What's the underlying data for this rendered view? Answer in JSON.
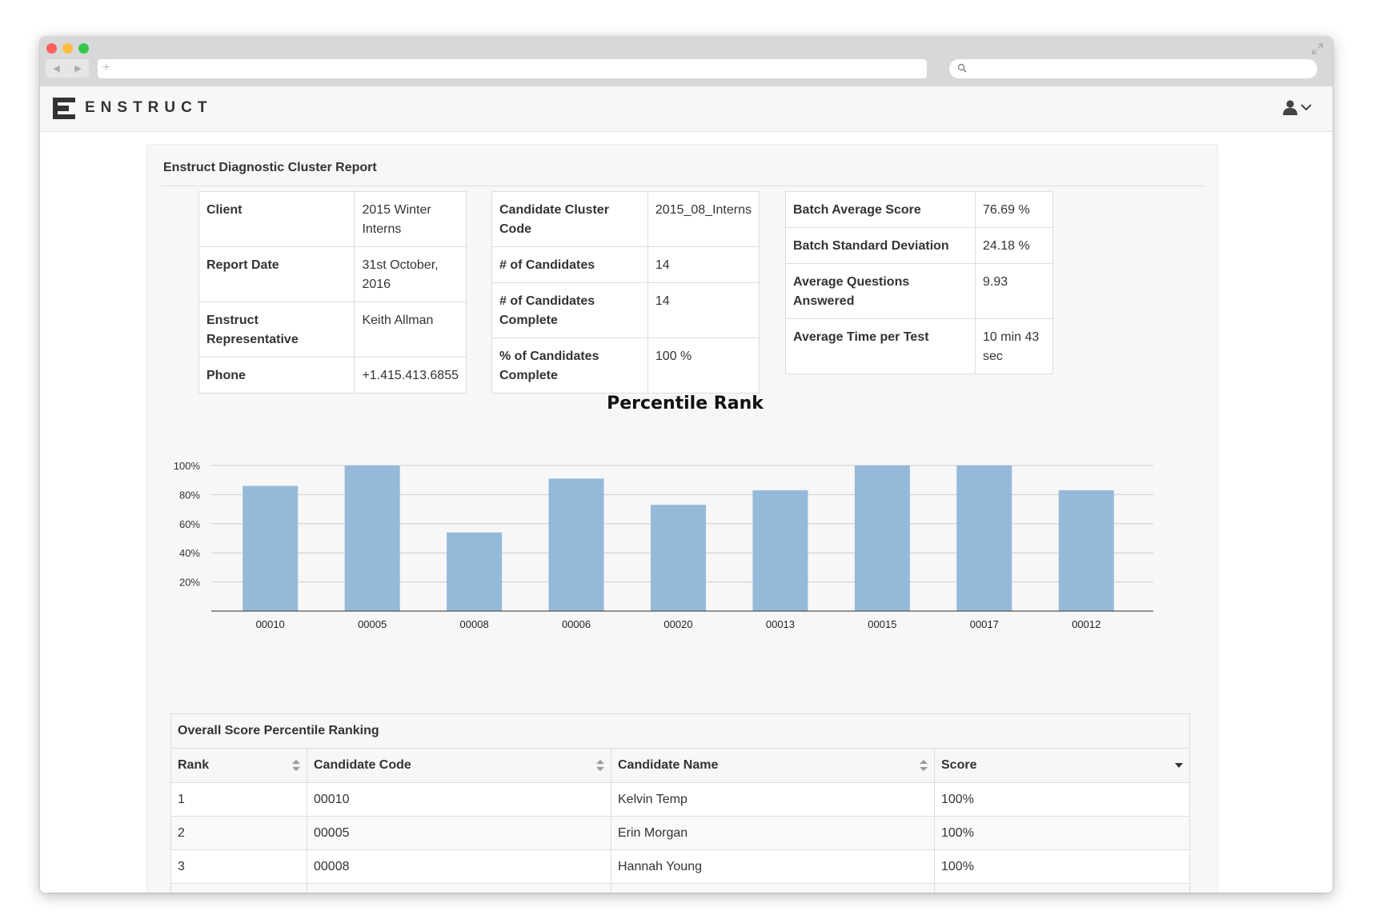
{
  "app": {
    "brand": "ENSTRUCT"
  },
  "colors": {
    "bar": "#95b9d9",
    "gridline": "#cccccc",
    "axis": "#555555"
  },
  "icons": {
    "logo": "enstruct-logo-icon",
    "user": "user-icon",
    "dropdown": "chevron-down-icon",
    "search": "search-icon"
  },
  "report": {
    "title": "Enstruct Diagnostic Cluster Report",
    "client_info": [
      {
        "key": "Client",
        "value": "2015 Winter Interns"
      },
      {
        "key": "Report Date",
        "value": "31st October, 2016"
      },
      {
        "key": "Enstruct Representative",
        "value": "Keith Allman"
      },
      {
        "key": "Phone",
        "value": "+1.415.413.6855"
      }
    ],
    "cluster_info": [
      {
        "key": "Candidate Cluster Code",
        "value": "2015_08_Interns"
      },
      {
        "key": "# of Candidates",
        "value": "14"
      },
      {
        "key": "# of Candidates Complete",
        "value": "14"
      },
      {
        "key": "% of Candidates Complete",
        "value": "100 %"
      }
    ],
    "batch_info": [
      {
        "key": "Batch Average Score",
        "value": "76.69 %"
      },
      {
        "key": "Batch Standard Deviation",
        "value": "24.18 %"
      },
      {
        "key": "Average Questions Answered",
        "value": "9.93"
      },
      {
        "key": "Average Time per Test",
        "value": "10 min 43 sec"
      }
    ]
  },
  "chart_data": {
    "type": "bar",
    "title": "Percentile Rank",
    "categories": [
      "00010",
      "00005",
      "00008",
      "00006",
      "00020",
      "00013",
      "00015",
      "00017",
      "00012"
    ],
    "values": [
      86,
      100,
      54,
      91,
      73,
      83,
      100,
      100,
      83
    ],
    "yticks": [
      "20%",
      "40%",
      "60%",
      "80%",
      "100%"
    ],
    "ylim": [
      0,
      100
    ],
    "xlabel": "",
    "ylabel": "",
    "grid": true,
    "legend": "none"
  },
  "ranking": {
    "title": "Overall Score Percentile Ranking",
    "columns": [
      "Rank",
      "Candidate Code",
      "Candidate Name",
      "Score"
    ],
    "rows": [
      [
        "1",
        "00010",
        "Kelvin Temp",
        "100%"
      ],
      [
        "2",
        "00005",
        "Erin Morgan",
        "100%"
      ],
      [
        "3",
        "00008",
        "Hannah Young",
        "100%"
      ],
      [
        "",
        "",
        "",
        ""
      ]
    ]
  }
}
